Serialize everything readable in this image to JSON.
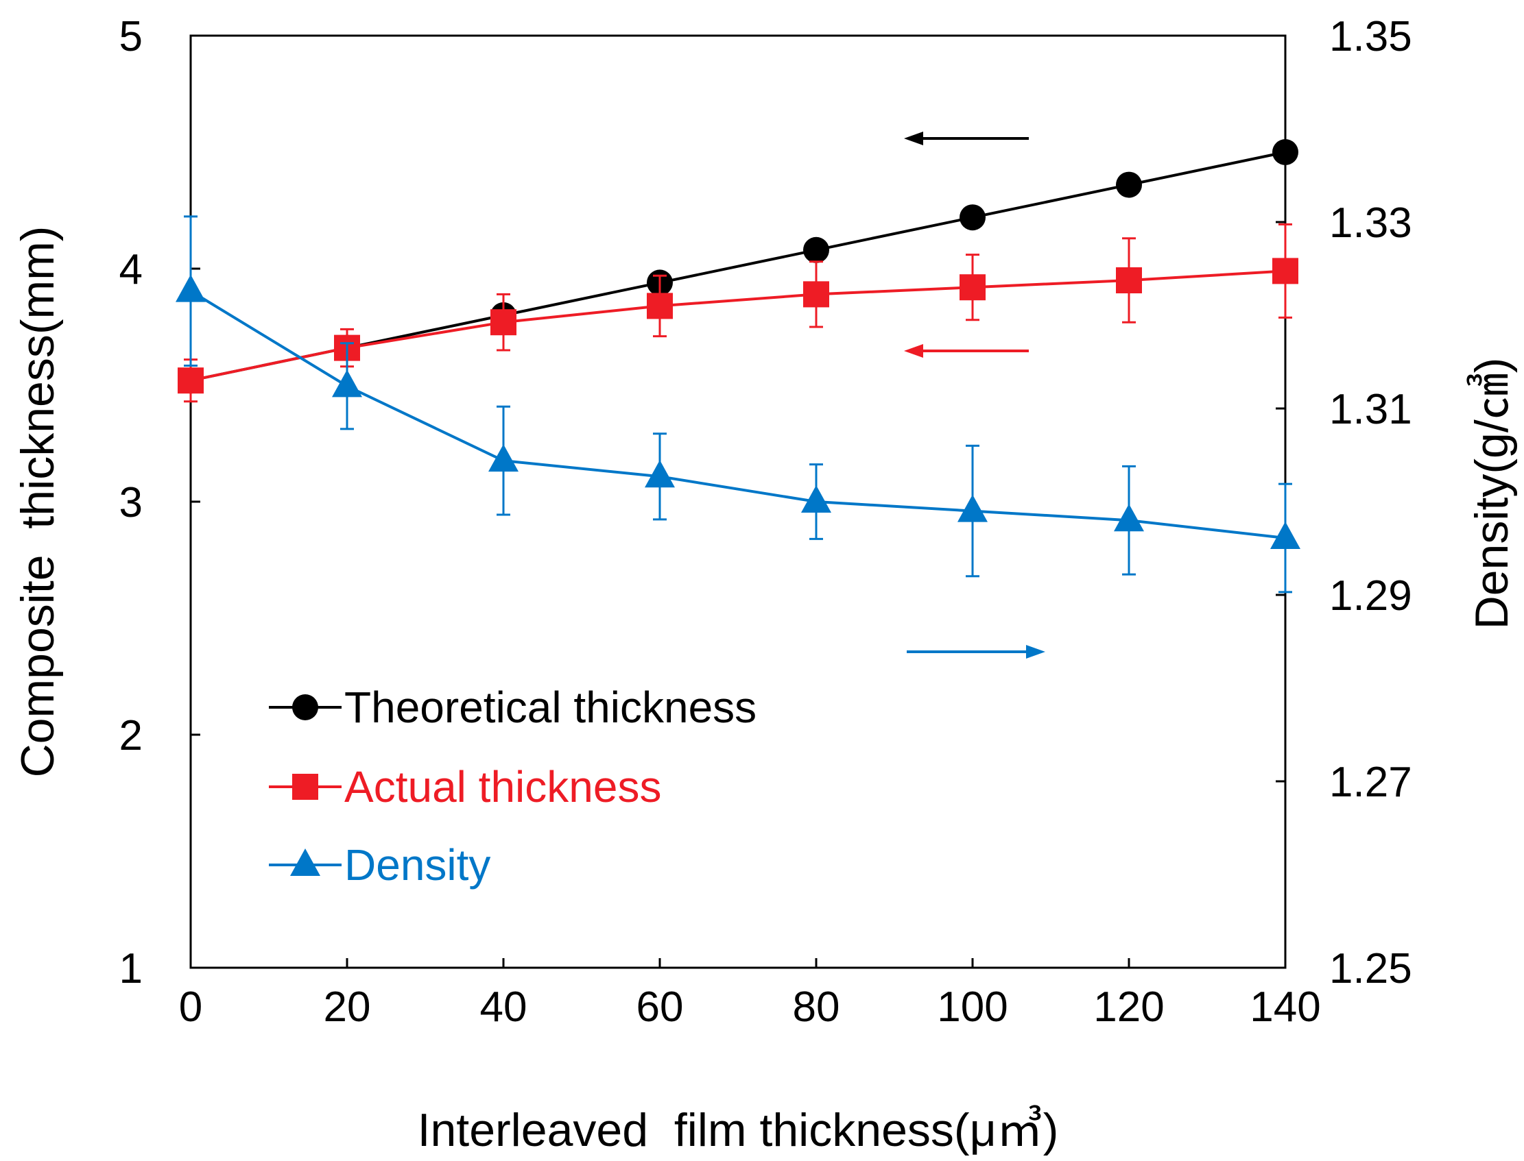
{
  "chart_data": {
    "type": "line",
    "title": "",
    "xlabel": "Interleaved  film thickness(μ㎥)",
    "ylabel": "Composite  thickness(mm)",
    "y2label": "Density(g/㎤)",
    "xlim": [
      0,
      140
    ],
    "ylim": [
      1,
      5
    ],
    "y2lim": [
      1.25,
      1.35
    ],
    "x_ticks": [
      "0",
      "20",
      "40",
      "60",
      "80",
      "100",
      "120",
      "140"
    ],
    "y_ticks": [
      "1",
      "2",
      "3",
      "4",
      "5"
    ],
    "y2_ticks": [
      "1.25",
      "1.27",
      "1.29",
      "1.31",
      "1.33",
      "1.35"
    ],
    "grid": false,
    "legend_position": "lower-left",
    "x": [
      0,
      20,
      40,
      60,
      80,
      100,
      120,
      140
    ],
    "series": [
      {
        "name": "Theoretical thickness",
        "axis": "left",
        "color": "#000000",
        "marker": "circle",
        "values": [
          3.52,
          3.66,
          3.8,
          3.94,
          4.08,
          4.22,
          4.36,
          4.5
        ]
      },
      {
        "name": "Actual thickness",
        "axis": "left",
        "color": "#ee1c25",
        "marker": "square",
        "values": [
          3.52,
          3.66,
          3.77,
          3.84,
          3.89,
          3.92,
          3.95,
          3.99
        ],
        "errors": [
          0.09,
          0.08,
          0.12,
          0.13,
          0.14,
          0.14,
          0.18,
          0.2
        ]
      },
      {
        "name": "Density",
        "axis": "right",
        "color": "#0077c8",
        "marker": "triangle",
        "values": [
          1.3226,
          1.3124,
          1.3044,
          1.3027,
          1.3,
          1.299,
          1.298,
          1.2961
        ],
        "errors": [
          0.008,
          0.0046,
          0.0058,
          0.0046,
          0.004,
          0.007,
          0.0058,
          0.0058
        ]
      }
    ],
    "annotations": [
      {
        "kind": "arrow",
        "color": "#000000",
        "direction": "left",
        "meaning": "theoretical thickness on left axis"
      },
      {
        "kind": "arrow",
        "color": "#ee1c25",
        "direction": "left",
        "meaning": "actual thickness on left axis"
      },
      {
        "kind": "arrow",
        "color": "#0077c8",
        "direction": "right",
        "meaning": "density on right axis"
      }
    ]
  }
}
